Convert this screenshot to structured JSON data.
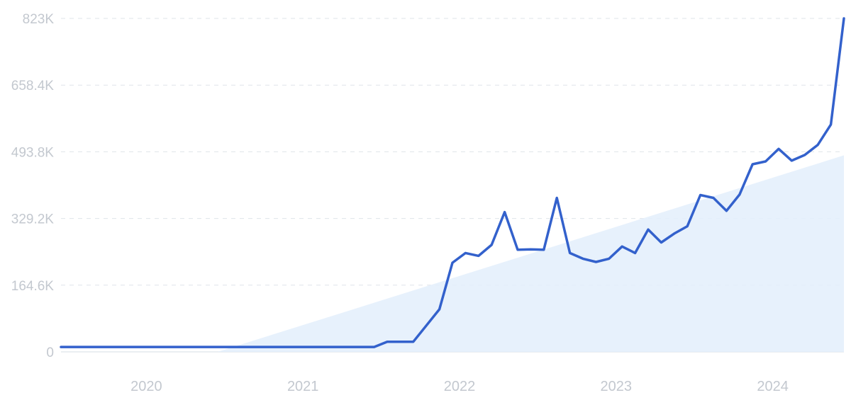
{
  "chart_data": {
    "type": "line",
    "title": "",
    "xlabel": "",
    "ylabel": "",
    "x_tick_labels": [
      "2020",
      "2021",
      "2022",
      "2023",
      "2024"
    ],
    "y_tick_labels": [
      "0",
      "164.6K",
      "329.2K",
      "493.8K",
      "658.4K",
      "823K"
    ],
    "y_tick_values": [
      0,
      164600,
      329200,
      493800,
      658400,
      823000
    ],
    "ylim": [
      0,
      823000
    ],
    "xlim": [
      "2019-07",
      "2024-07"
    ],
    "grid": "horizontal-dashed",
    "legend": "none",
    "colors": {
      "line": "#3361cc",
      "trend_fill": "#e3eefb",
      "grid": "#dfe4ea",
      "tick_text": "#c3c8cf"
    },
    "series": [
      {
        "x": [
          "2019-07",
          "2019-08",
          "2019-09",
          "2019-10",
          "2019-11",
          "2019-12",
          "2020-01",
          "2020-02",
          "2020-03",
          "2020-04",
          "2020-05",
          "2020-06",
          "2020-07",
          "2020-08",
          "2020-09",
          "2020-10",
          "2020-11",
          "2020-12",
          "2021-01",
          "2021-02",
          "2021-03",
          "2021-04",
          "2021-05",
          "2021-06",
          "2021-07",
          "2021-08",
          "2021-09",
          "2021-10",
          "2021-11",
          "2021-12",
          "2022-01",
          "2022-02",
          "2022-03",
          "2022-04",
          "2022-05",
          "2022-06",
          "2022-07",
          "2022-08",
          "2022-09",
          "2022-10",
          "2022-11",
          "2022-12",
          "2023-01",
          "2023-02",
          "2023-03",
          "2023-04",
          "2023-05",
          "2023-06",
          "2023-07",
          "2023-08",
          "2023-09",
          "2023-10",
          "2023-11",
          "2023-12",
          "2024-01",
          "2024-02",
          "2024-03",
          "2024-04",
          "2024-05",
          "2024-06",
          "2024-07"
        ],
        "values": [
          12000,
          12000,
          12000,
          12000,
          12000,
          12000,
          12000,
          12000,
          12000,
          12000,
          12000,
          12000,
          12000,
          12000,
          12000,
          12000,
          12000,
          12000,
          12000,
          12000,
          12000,
          12000,
          12000,
          12000,
          12000,
          25000,
          25000,
          25000,
          65000,
          105000,
          220000,
          244000,
          237000,
          264000,
          345000,
          252000,
          253000,
          252000,
          380000,
          244000,
          230000,
          222000,
          230000,
          260000,
          244000,
          302000,
          270000,
          292000,
          310000,
          387000,
          380000,
          348000,
          388000,
          463000,
          470000,
          501000,
          472000,
          486000,
          511000,
          561000,
          823000
        ]
      },
      {
        "kind": "trend-area",
        "x": [
          "2020-07",
          "2024-07"
        ],
        "values": [
          0,
          485000
        ]
      }
    ]
  }
}
